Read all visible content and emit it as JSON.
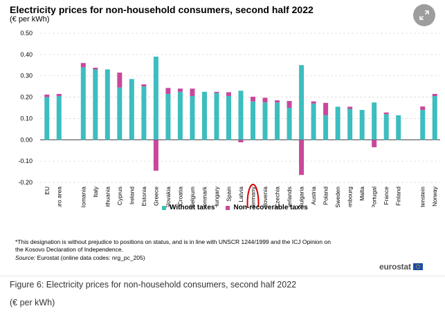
{
  "header": {
    "title": "Electricity prices for non-household consumers, second half 2022",
    "unit": "(€ per kWh)"
  },
  "expand_icon": "expand-arrows-icon",
  "legend": {
    "without_taxes": "Without taxes",
    "non_recoverable": "Non-recoverable taxes"
  },
  "notes": {
    "footnote": "*This designation is without prejudice to positions on status, and is in line with UNSCR 1244/1999 and the ICJ Opinion on the Kosovo Declaration of Independence.",
    "source_label": "Source:",
    "source_text": " Eurostat (online data codes: nrg_pc_205)"
  },
  "logo": {
    "text": "eurostat"
  },
  "caption": {
    "figure": "Figure 6: Electricity prices for non-household consumers, second half 2022",
    "unit": "(€ per kWh)"
  },
  "colors": {
    "without_taxes": "#3dbdbf",
    "non_recoverable": "#c8489a",
    "highlight": "#d40000"
  },
  "chart_data": {
    "type": "bar",
    "stacked": true,
    "title": "Electricity prices for non-household consumers, second half 2022",
    "ylabel": "€ per kWh",
    "ylim": [
      -0.2,
      0.5
    ],
    "yticks": [
      "0.50",
      "0.40",
      "0.30",
      "0.20",
      "0.10",
      "0.00",
      "-0.10",
      "-0.20"
    ],
    "ytick_values": [
      0.5,
      0.4,
      0.3,
      0.2,
      0.1,
      0.0,
      -0.1,
      -0.2
    ],
    "highlight_category": "Germany",
    "categories": [
      "EU",
      "Euro area",
      "",
      "Romania",
      "Italy",
      "Lithuania",
      "Cyprus",
      "Ireland",
      "Estonia",
      "Greece",
      "Slovakia",
      "Croatia",
      "Belgium",
      "Denmark",
      "Hungary",
      "Spain",
      "Latvia",
      "Germany",
      "Slovenia",
      "Czechia",
      "Netherlands",
      "Bulgaria",
      "Austria",
      "Poland",
      "Sweden",
      "Luxembourg",
      "Malta",
      "Portugal",
      "France",
      "Finland",
      "",
      "Liechtenstein",
      "Norway"
    ],
    "series": [
      {
        "name": "Without taxes",
        "values": [
          0.2,
          0.205,
          null,
          0.34,
          0.33,
          0.33,
          0.245,
          0.285,
          0.25,
          0.39,
          0.215,
          0.225,
          0.205,
          0.225,
          0.22,
          0.205,
          0.23,
          0.18,
          0.175,
          0.175,
          0.15,
          0.35,
          0.17,
          0.115,
          0.155,
          0.145,
          0.14,
          0.175,
          0.12,
          0.115,
          null,
          0.14,
          0.205
        ]
      },
      {
        "name": "Non-recoverable taxes",
        "values": [
          0.012,
          0.01,
          null,
          0.02,
          0.008,
          0.0,
          0.07,
          0.0,
          0.01,
          -0.145,
          0.028,
          0.015,
          0.035,
          0.0,
          0.005,
          0.018,
          -0.012,
          0.022,
          0.022,
          0.01,
          0.032,
          -0.165,
          0.01,
          0.058,
          0.0,
          0.01,
          0.0,
          -0.035,
          0.008,
          0.0,
          null,
          0.016,
          0.01
        ]
      }
    ]
  }
}
